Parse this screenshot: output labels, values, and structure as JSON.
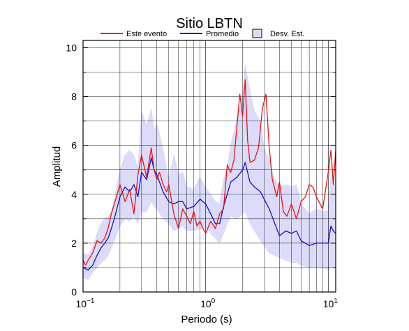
{
  "colors": {
    "event": "#ee1111",
    "average": "#1010cc",
    "band_fill": "#dcdcfa",
    "band_stroke": "#c8c8f0",
    "grid": "#000000"
  },
  "chart_data": {
    "type": "line",
    "title": "Sitio LBTN",
    "xlabel": "Periodo (s)",
    "ylabel": "Amplitud",
    "x_scale": "log",
    "xlim": [
      0.1,
      11.5
    ],
    "ylim": [
      0,
      10.3
    ],
    "grid": true,
    "legend_position": "top",
    "x_ticks": [
      {
        "value": 0.1,
        "base": "10",
        "exp": "−1"
      },
      {
        "value": 1,
        "base": "10",
        "exp": "0"
      },
      {
        "value": 10,
        "base": "10",
        "exp": "1"
      }
    ],
    "y_ticks": [
      0,
      2,
      4,
      6,
      8,
      10
    ],
    "legend": [
      {
        "key": "event",
        "label": "Este evento"
      },
      {
        "key": "average",
        "label": "Promedio"
      },
      {
        "key": "band",
        "label": "Desv. Est."
      }
    ],
    "series": [
      {
        "name": "Este evento",
        "key": "event",
        "x": [
          0.1,
          0.105,
          0.11,
          0.12,
          0.13,
          0.14,
          0.15,
          0.16,
          0.17,
          0.18,
          0.2,
          0.22,
          0.24,
          0.26,
          0.28,
          0.3,
          0.33,
          0.36,
          0.38,
          0.4,
          0.42,
          0.45,
          0.48,
          0.5,
          0.55,
          0.6,
          0.65,
          0.7,
          0.75,
          0.8,
          0.85,
          0.9,
          0.95,
          1.0,
          1.1,
          1.2,
          1.3,
          1.4,
          1.5,
          1.6,
          1.7,
          1.8,
          1.9,
          2.0,
          2.1,
          2.2,
          2.3,
          2.5,
          2.7,
          2.9,
          3.1,
          3.3,
          3.5,
          3.8,
          4.0,
          4.3,
          4.6,
          5.0,
          5.5,
          6.0,
          6.5,
          7.0,
          7.5,
          8.0,
          9.0,
          10.0,
          10.5,
          11.0,
          11.5
        ],
        "values": [
          1.3,
          1.1,
          1.3,
          1.6,
          2.1,
          2.0,
          2.2,
          2.6,
          3.2,
          3.6,
          4.4,
          3.7,
          4.2,
          3.2,
          4.8,
          5.6,
          4.7,
          5.9,
          5.0,
          4.6,
          4.9,
          4.4,
          4.1,
          4.4,
          3.2,
          2.6,
          3.4,
          3.1,
          2.8,
          3.3,
          2.7,
          2.9,
          2.6,
          2.4,
          2.9,
          2.6,
          3.2,
          3.4,
          5.2,
          4.9,
          5.4,
          6.8,
          8.1,
          7.2,
          8.7,
          6.2,
          5.3,
          5.4,
          5.9,
          7.5,
          8.1,
          5.9,
          4.6,
          3.9,
          4.5,
          3.3,
          3.1,
          3.6,
          3.0,
          3.7,
          3.9,
          4.4,
          4.3,
          3.9,
          3.4,
          4.9,
          5.8,
          4.4,
          5.8
        ]
      },
      {
        "name": "Promedio",
        "key": "average",
        "x": [
          0.1,
          0.11,
          0.12,
          0.13,
          0.14,
          0.15,
          0.16,
          0.17,
          0.18,
          0.2,
          0.22,
          0.24,
          0.26,
          0.28,
          0.3,
          0.33,
          0.36,
          0.38,
          0.4,
          0.45,
          0.5,
          0.55,
          0.6,
          0.65,
          0.7,
          0.8,
          0.9,
          1.0,
          1.1,
          1.2,
          1.3,
          1.4,
          1.5,
          1.6,
          1.8,
          2.0,
          2.1,
          2.3,
          2.5,
          2.8,
          3.0,
          3.3,
          3.6,
          4.0,
          4.5,
          5.0,
          5.5,
          6.0,
          7.0,
          8.0,
          9.0,
          10.0,
          10.5,
          11.0,
          11.5
        ],
        "values": [
          1.0,
          0.9,
          1.1,
          1.5,
          1.8,
          2.0,
          2.2,
          2.6,
          3.0,
          3.9,
          4.3,
          4.1,
          4.4,
          3.9,
          4.9,
          4.6,
          5.5,
          5.0,
          4.8,
          4.1,
          3.7,
          3.6,
          3.7,
          3.7,
          3.4,
          3.5,
          3.8,
          3.6,
          3.2,
          2.8,
          2.8,
          3.5,
          4.0,
          4.5,
          4.7,
          5.0,
          5.3,
          4.5,
          4.3,
          4.1,
          3.8,
          3.4,
          2.9,
          2.3,
          2.5,
          2.4,
          2.5,
          2.1,
          1.9,
          2.0,
          2.0,
          2.0,
          2.7,
          2.5,
          2.4
        ]
      },
      {
        "name": "Desv. Est.",
        "key": "band",
        "x": [
          0.1,
          0.11,
          0.12,
          0.13,
          0.14,
          0.15,
          0.16,
          0.17,
          0.18,
          0.2,
          0.22,
          0.24,
          0.26,
          0.28,
          0.3,
          0.33,
          0.36,
          0.38,
          0.4,
          0.45,
          0.5,
          0.55,
          0.6,
          0.65,
          0.7,
          0.8,
          0.9,
          1.0,
          1.1,
          1.2,
          1.3,
          1.4,
          1.5,
          1.6,
          1.8,
          2.0,
          2.1,
          2.3,
          2.5,
          2.8,
          3.0,
          3.3,
          3.6,
          4.0,
          4.5,
          5.0,
          5.5,
          6.0,
          7.0,
          8.0,
          9.0,
          10.0,
          10.5,
          11.0,
          11.5
        ],
        "upper": [
          1.6,
          1.5,
          1.8,
          2.4,
          2.8,
          3.0,
          3.1,
          3.3,
          3.8,
          5.0,
          5.6,
          5.8,
          5.6,
          5.0,
          7.4,
          6.8,
          7.5,
          6.6,
          6.9,
          5.8,
          4.6,
          5.6,
          4.8,
          4.9,
          4.3,
          4.2,
          4.7,
          4.3,
          4.0,
          3.7,
          3.6,
          4.6,
          5.1,
          6.0,
          7.1,
          8.0,
          9.3,
          8.2,
          7.4,
          7.0,
          5.9,
          5.4,
          4.7,
          4.3,
          4.4,
          4.3,
          4.4,
          3.6,
          3.2,
          3.4,
          3.3,
          3.3,
          4.8,
          4.6,
          4.3
        ],
        "lower": [
          0.6,
          0.5,
          0.8,
          1.0,
          1.2,
          1.3,
          1.5,
          1.8,
          2.1,
          2.7,
          3.0,
          2.9,
          3.1,
          2.8,
          3.3,
          3.3,
          3.7,
          3.5,
          3.4,
          3.0,
          2.8,
          2.5,
          2.6,
          2.7,
          2.5,
          2.5,
          2.6,
          2.6,
          2.4,
          2.2,
          2.0,
          2.4,
          2.8,
          3.1,
          3.0,
          3.2,
          3.3,
          2.8,
          2.5,
          2.1,
          1.9,
          1.6,
          1.5,
          1.4,
          1.3,
          1.2,
          1.2,
          1.1,
          1.0,
          1.0,
          1.0,
          0.9,
          1.0,
          1.0,
          1.0
        ]
      }
    ]
  }
}
